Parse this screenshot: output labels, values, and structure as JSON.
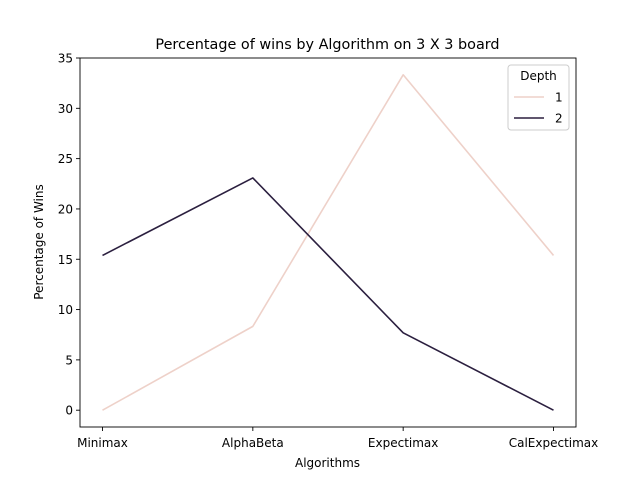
{
  "chart_data": {
    "type": "line",
    "title": "Percentage of wins by Algorithm on 3 X 3 board",
    "xlabel": "Algorithms",
    "ylabel": "Percentage of Wins",
    "categories": [
      "Minimax",
      "AlphaBeta",
      "Expectimax",
      "CalExpectimax"
    ],
    "ylim": [
      -1.67,
      35
    ],
    "yticks": [
      0,
      5,
      10,
      15,
      20,
      25,
      30,
      35
    ],
    "ytick_labels": [
      "0",
      "5",
      "10",
      "15",
      "20",
      "25",
      "30",
      "35"
    ],
    "grid": false,
    "legend": {
      "title": "Depth",
      "placement": "top-right"
    },
    "series": [
      {
        "name": "1",
        "color": "#eed1c9",
        "values": [
          0.0,
          8.33,
          33.33,
          15.38
        ]
      },
      {
        "name": "2",
        "color": "#2b1f3f",
        "values": [
          15.38,
          23.08,
          7.69,
          0.0
        ]
      }
    ]
  }
}
